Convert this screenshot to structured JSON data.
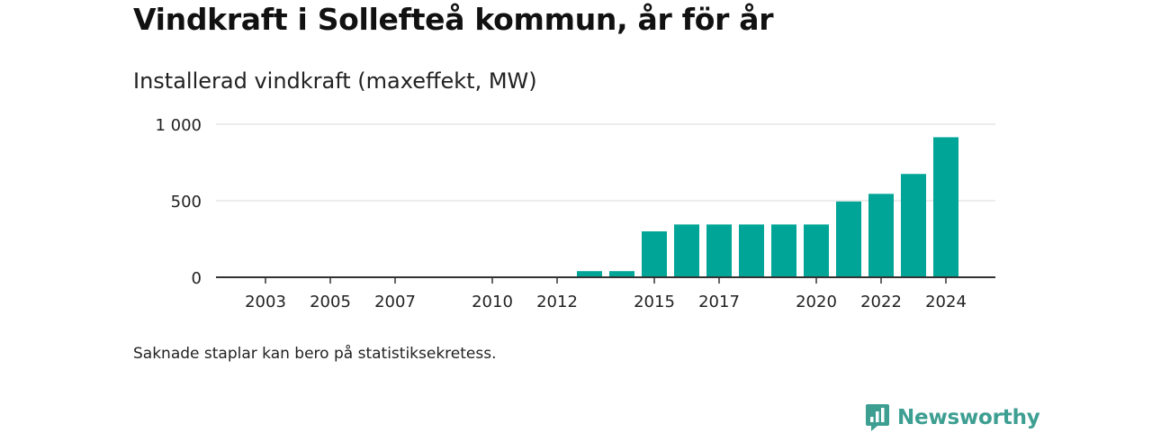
{
  "title": "Vindkraft i Sollefteå kommun, år för år",
  "subtitle": "Installerad vindkraft (maxeffekt, MW)",
  "note": "Saknade staplar kan bero på statistiksekretess.",
  "brand": {
    "name": "Newsworthy",
    "icon": "newsworthy-logo-icon",
    "color": "#3d9e92"
  },
  "chart_data": {
    "type": "bar",
    "title": "Vindkraft i Sollefteå kommun, år för år",
    "subtitle": "Installerad vindkraft (maxeffekt, MW)",
    "xlabel": "",
    "ylabel": "",
    "ylim": [
      0,
      1000
    ],
    "yticks": [
      0,
      500,
      1000
    ],
    "ytick_labels": [
      "0",
      "500",
      "1 000"
    ],
    "xtick_labels": [
      "2003",
      "2005",
      "2007",
      "2010",
      "2012",
      "2015",
      "2017",
      "2020",
      "2022",
      "2024"
    ],
    "grid": true,
    "bar_color": "#00a598",
    "categories": [
      2002,
      2003,
      2004,
      2005,
      2006,
      2007,
      2008,
      2009,
      2010,
      2011,
      2012,
      2013,
      2014,
      2015,
      2016,
      2017,
      2018,
      2019,
      2020,
      2021,
      2022,
      2023,
      2024
    ],
    "values": [
      null,
      null,
      null,
      null,
      null,
      null,
      null,
      null,
      null,
      null,
      null,
      40,
      40,
      300,
      345,
      345,
      345,
      345,
      345,
      495,
      545,
      675,
      915
    ]
  }
}
